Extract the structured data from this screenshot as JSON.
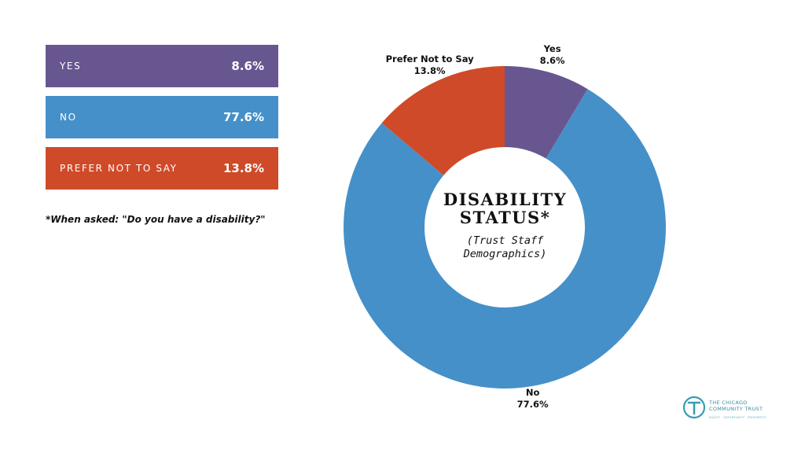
{
  "legend": {
    "items": [
      {
        "label": "YES",
        "value": "8.6%",
        "color": "#685690"
      },
      {
        "label": "NO",
        "value": "77.6%",
        "color": "#4590c8"
      },
      {
        "label": "PREFER NOT TO SAY",
        "value": "13.8%",
        "color": "#cf4a29"
      }
    ]
  },
  "footnote": "*When asked: \"Do you have a disability?\"",
  "center": {
    "title_line1": "DISABILITY",
    "title_line2": "STATUS*",
    "subtitle_line1": "(Trust Staff",
    "subtitle_line2": "Demographics)"
  },
  "logo": {
    "line1": "THE CHICAGO",
    "line2": "COMMUNITY TRUST",
    "tagline": "EQUITY · OPPORTUNITY · PROSPERITY",
    "color": "#3b9cb0"
  },
  "chart_data": {
    "type": "pie",
    "donut": true,
    "categories": [
      "Yes",
      "No",
      "Prefer Not to Say"
    ],
    "values": [
      8.6,
      77.6,
      13.8
    ],
    "labels": [
      "8.6%",
      "77.6%",
      "13.8%"
    ],
    "colors": [
      "#685690",
      "#4590c8",
      "#cf4a29"
    ],
    "title": "DISABILITY STATUS*",
    "subtitle": "(Trust Staff Demographics)",
    "start": "12 o'clock, clockwise",
    "legend": "left"
  }
}
